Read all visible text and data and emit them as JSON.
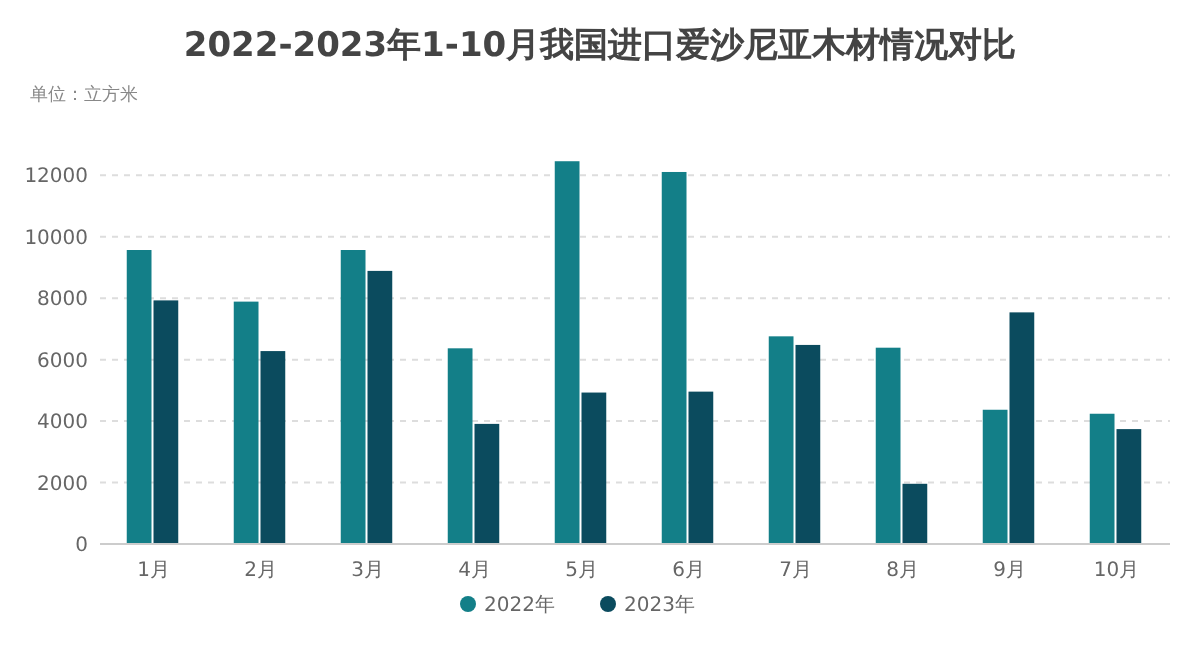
{
  "chart_data": {
    "type": "bar",
    "title": "2022-2023年1-10月我国进口爱沙尼亚木材情况对比",
    "annotations": [
      "单位：立方米"
    ],
    "categories": [
      "1月",
      "2月",
      "3月",
      "4月",
      "5月",
      "6月",
      "7月",
      "8月",
      "9月",
      "10月"
    ],
    "series": [
      {
        "name": "2022年",
        "color": "#137f88",
        "values": [
          9570,
          7890,
          9570,
          6370,
          12460,
          12110,
          6760,
          6390,
          4370,
          4240
        ]
      },
      {
        "name": "2023年",
        "color": "#0b4b5e",
        "values": [
          7930,
          6280,
          8890,
          3910,
          4930,
          4960,
          6480,
          1960,
          7540,
          3740
        ]
      }
    ],
    "ylim": [
      0,
      12500
    ],
    "yticks": [
      0,
      2000,
      4000,
      6000,
      8000,
      10000,
      12000
    ],
    "grid": "y",
    "legend": "bottom"
  }
}
